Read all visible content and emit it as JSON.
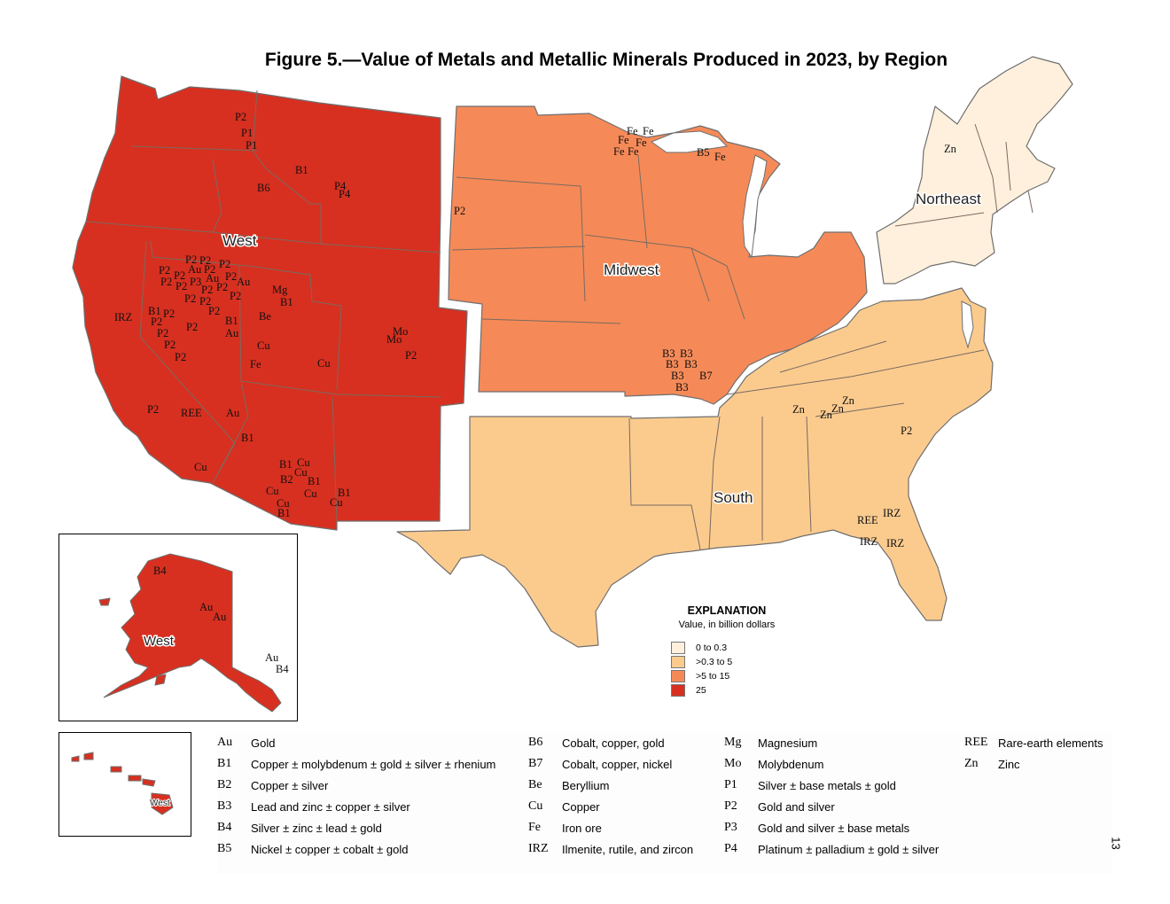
{
  "title": "Figure 5.—Value of Metals and Metallic Minerals Produced in 2023, by Region",
  "page_number": "13",
  "colors": {
    "west": "#d73020",
    "midwest": "#f58a58",
    "south": "#fbcb8e",
    "northeast": "#fef0dc",
    "border": "#6f6f6f"
  },
  "regions": [
    {
      "name": "West",
      "color": "#d73020"
    },
    {
      "name": "Midwest",
      "color": "#f58a58"
    },
    {
      "name": "South",
      "color": "#fbcb8e"
    },
    {
      "name": "Northeast",
      "color": "#fef0dc"
    }
  ],
  "map_labels": {
    "west": "West",
    "midwest": "Midwest",
    "south": "South",
    "northeast": "Northeast",
    "alaska": "West",
    "hawaii": "West"
  },
  "commodity_labels": {
    "west": [
      "P2",
      "P1",
      "P1",
      "B1",
      "B6",
      "P4",
      "P4",
      "P2",
      "P2",
      "Au",
      "P2",
      "P2",
      "P2",
      "P2",
      "P2",
      "P2",
      "P3",
      "P2",
      "Au",
      "P2",
      "P2",
      "Au",
      "P2",
      "P2",
      "P2",
      "Mg",
      "B1",
      "IRZ",
      "B1",
      "P2",
      "P2",
      "P2",
      "P2",
      "B1",
      "Au",
      "Be",
      "P2",
      "P2",
      "Cu",
      "Fe",
      "Cu",
      "Mo",
      "Mo",
      "P2",
      "P2",
      "REE",
      "Au",
      "B1",
      "P2",
      "B1",
      "Cu",
      "B2",
      "Cu",
      "Cu",
      "B1",
      "Cu",
      "Cu",
      "Cu",
      "B1",
      "B1",
      "Cu"
    ],
    "alaska": [
      "B4",
      "Au",
      "Au",
      "Au",
      "B4"
    ],
    "midwest": [
      "Fe",
      "Fe",
      "Fe",
      "Fe",
      "Fe",
      "Fe",
      "B5",
      "Fe",
      "P2",
      "B3",
      "B3",
      "B3",
      "B3",
      "B3",
      "B7",
      "B3"
    ],
    "south": [
      "Zn",
      "Zn",
      "Zn",
      "P2",
      "REE",
      "IRZ",
      "IRZ",
      "IRZ"
    ],
    "northeast": [
      "Zn"
    ]
  },
  "explanation": {
    "title": "EXPLANATION",
    "subtitle": "Value, in billion dollars",
    "classes": [
      {
        "label": "0 to 0.3",
        "color": "#fef0dc"
      },
      {
        "label": ">0.3 to 5",
        "color": "#fbcb8e"
      },
      {
        "label": ">5 to 15",
        "color": "#f58a58"
      },
      {
        "label": "25",
        "color": "#d73020"
      }
    ]
  },
  "legend": {
    "columns": [
      [
        {
          "code": "Au",
          "desc": "Gold"
        },
        {
          "code": "B1",
          "desc": "Copper ± molybdenum ± gold ± silver ± rhenium"
        },
        {
          "code": "B2",
          "desc": "Copper ± silver"
        },
        {
          "code": "B3",
          "desc": "Lead and zinc ± copper ± silver"
        },
        {
          "code": "B4",
          "desc": "Silver ± zinc ± lead ± gold"
        },
        {
          "code": "B5",
          "desc": "Nickel ± copper ± cobalt ± gold"
        }
      ],
      [
        {
          "code": "B6",
          "desc": "Cobalt, copper, gold"
        },
        {
          "code": "B7",
          "desc": "Cobalt, copper, nickel"
        },
        {
          "code": "Be",
          "desc": "Beryllium"
        },
        {
          "code": "Cu",
          "desc": "Copper"
        },
        {
          "code": "Fe",
          "desc": "Iron ore"
        },
        {
          "code": "IRZ",
          "desc": "Ilmenite, rutile, and zircon"
        }
      ],
      [
        {
          "code": "Mg",
          "desc": "Magnesium"
        },
        {
          "code": "Mo",
          "desc": "Molybdenum"
        },
        {
          "code": "P1",
          "desc": "Silver ± base metals ± gold"
        },
        {
          "code": "P2",
          "desc": "Gold and silver"
        },
        {
          "code": "P3",
          "desc": "Gold and silver ± base metals"
        },
        {
          "code": "P4",
          "desc": "Platinum ± palladium ± gold ± silver"
        }
      ],
      [
        {
          "code": "REE",
          "desc": "Rare-earth elements"
        },
        {
          "code": "Zn",
          "desc": "Zinc"
        }
      ]
    ]
  }
}
